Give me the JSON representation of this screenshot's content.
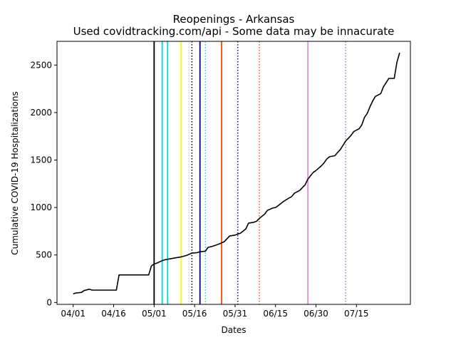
{
  "chart_data": {
    "type": "line",
    "title": "Reopenings - Arkansas",
    "subtitle": "Used covidtracking.com/api - Some data may be innacurate",
    "xlabel": "Dates",
    "ylabel": "Cumulative COVID-19 Hospitalizations",
    "grid": false,
    "xlim": [
      "2020-03-26",
      "2020-08-04"
    ],
    "ylim": [
      -20,
      2750
    ],
    "xticks": [
      {
        "date": "2020-04-01",
        "label": "04/01"
      },
      {
        "date": "2020-04-16",
        "label": "04/16"
      },
      {
        "date": "2020-05-01",
        "label": "05/01"
      },
      {
        "date": "2020-05-16",
        "label": "05/16"
      },
      {
        "date": "2020-05-31",
        "label": "05/31"
      },
      {
        "date": "2020-06-15",
        "label": "06/15"
      },
      {
        "date": "2020-06-30",
        "label": "06/30"
      },
      {
        "date": "2020-07-15",
        "label": "07/15"
      }
    ],
    "yticks": [
      0,
      500,
      1000,
      1500,
      2000,
      2500
    ],
    "series": [
      {
        "color": "#000000",
        "points": [
          [
            "2020-04-01",
            90
          ],
          [
            "2020-04-02",
            100
          ],
          [
            "2020-04-04",
            105
          ],
          [
            "2020-04-05",
            125
          ],
          [
            "2020-04-07",
            140
          ],
          [
            "2020-04-08",
            130
          ],
          [
            "2020-04-10",
            130
          ],
          [
            "2020-04-15",
            130
          ],
          [
            "2020-04-17",
            130
          ],
          [
            "2020-04-18",
            290
          ],
          [
            "2020-04-25",
            290
          ],
          [
            "2020-04-29",
            290
          ],
          [
            "2020-04-30",
            385
          ],
          [
            "2020-05-01",
            405
          ],
          [
            "2020-05-02",
            415
          ],
          [
            "2020-05-04",
            440
          ],
          [
            "2020-05-05",
            450
          ],
          [
            "2020-05-07",
            460
          ],
          [
            "2020-05-09",
            470
          ],
          [
            "2020-05-11",
            480
          ],
          [
            "2020-05-13",
            495
          ],
          [
            "2020-05-15",
            520
          ],
          [
            "2020-05-17",
            525
          ],
          [
            "2020-05-18",
            535
          ],
          [
            "2020-05-20",
            540
          ],
          [
            "2020-05-21",
            580
          ],
          [
            "2020-05-23",
            595
          ],
          [
            "2020-05-25",
            615
          ],
          [
            "2020-05-27",
            640
          ],
          [
            "2020-05-29",
            700
          ],
          [
            "2020-05-31",
            710
          ],
          [
            "2020-06-02",
            730
          ],
          [
            "2020-06-04",
            775
          ],
          [
            "2020-06-05",
            835
          ],
          [
            "2020-06-07",
            845
          ],
          [
            "2020-06-08",
            855
          ],
          [
            "2020-06-09",
            885
          ],
          [
            "2020-06-11",
            930
          ],
          [
            "2020-06-12",
            970
          ],
          [
            "2020-06-14",
            995
          ],
          [
            "2020-06-15",
            1000
          ],
          [
            "2020-06-16",
            1020
          ],
          [
            "2020-06-18",
            1065
          ],
          [
            "2020-06-20",
            1100
          ],
          [
            "2020-06-21",
            1115
          ],
          [
            "2020-06-22",
            1150
          ],
          [
            "2020-06-24",
            1180
          ],
          [
            "2020-06-26",
            1240
          ],
          [
            "2020-06-27",
            1300
          ],
          [
            "2020-06-29",
            1370
          ],
          [
            "2020-06-30",
            1390
          ],
          [
            "2020-07-02",
            1440
          ],
          [
            "2020-07-03",
            1470
          ],
          [
            "2020-07-04",
            1510
          ],
          [
            "2020-07-05",
            1535
          ],
          [
            "2020-07-07",
            1545
          ],
          [
            "2020-07-08",
            1580
          ],
          [
            "2020-07-09",
            1610
          ],
          [
            "2020-07-11",
            1700
          ],
          [
            "2020-07-13",
            1760
          ],
          [
            "2020-07-14",
            1800
          ],
          [
            "2020-07-16",
            1830
          ],
          [
            "2020-07-17",
            1870
          ],
          [
            "2020-07-18",
            1950
          ],
          [
            "2020-07-19",
            1990
          ],
          [
            "2020-07-20",
            2060
          ],
          [
            "2020-07-21",
            2120
          ],
          [
            "2020-07-22",
            2170
          ],
          [
            "2020-07-24",
            2200
          ],
          [
            "2020-07-25",
            2270
          ],
          [
            "2020-07-27",
            2360
          ],
          [
            "2020-07-29",
            2360
          ],
          [
            "2020-07-30",
            2530
          ],
          [
            "2020-07-31",
            2630
          ]
        ]
      }
    ],
    "vlines": [
      {
        "date": "2020-05-01",
        "color": "#000000",
        "style": "solid"
      },
      {
        "date": "2020-05-04",
        "color": "#00d4e8",
        "style": "solid"
      },
      {
        "date": "2020-05-06",
        "color": "#00d4e8",
        "style": "solid"
      },
      {
        "date": "2020-05-11",
        "color": "#ffff00",
        "style": "solid"
      },
      {
        "date": "2020-05-15",
        "color": "#000000",
        "style": "dotted"
      },
      {
        "date": "2020-05-18",
        "color": "#00008b",
        "style": "solid"
      },
      {
        "date": "2020-05-20",
        "color": "#00d4e8",
        "style": "dotted"
      },
      {
        "date": "2020-05-26",
        "color": "#ff4500",
        "style": "solid"
      },
      {
        "date": "2020-06-01",
        "color": "#00008b",
        "style": "dotted"
      },
      {
        "date": "2020-06-09",
        "color": "#ff4500",
        "style": "dotted"
      },
      {
        "date": "2020-06-27",
        "color": "#ee82ee",
        "style": "solid"
      },
      {
        "date": "2020-07-11",
        "color": "#b070d8",
        "style": "dotted"
      }
    ]
  }
}
